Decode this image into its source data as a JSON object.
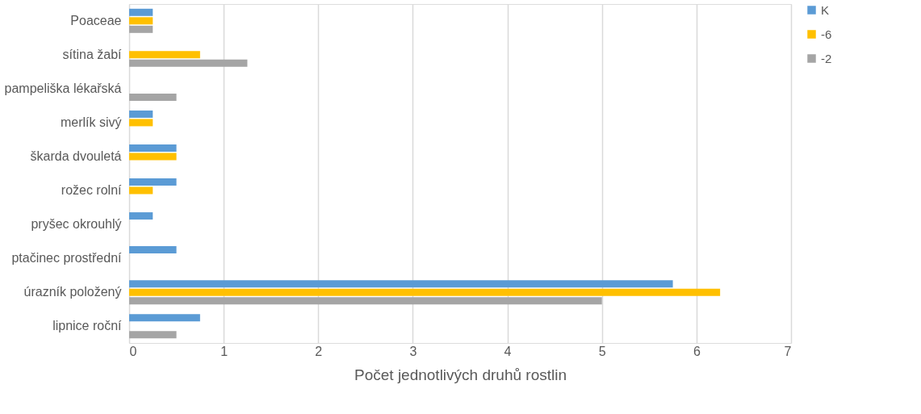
{
  "chart_data": {
    "type": "bar",
    "orientation": "horizontal",
    "xlabel": "Počet jednotlivých druhů rostlin",
    "categories": [
      "Poaceae",
      "sítina žabí",
      "pampeliška lékařská",
      "merlík sivý",
      "škarda dvouletá",
      "rožec rolní",
      "pryšec okrouhlý",
      "ptačinec prostřední",
      "úrazník položený",
      "lipnice roční"
    ],
    "series": [
      {
        "name": "K",
        "color": "#5b9bd5",
        "values": [
          0.25,
          null,
          null,
          0.25,
          0.5,
          0.5,
          0.25,
          0.5,
          5.75,
          0.75
        ]
      },
      {
        "name": "-6",
        "color": "#ffc000",
        "values": [
          0.25,
          0.75,
          null,
          0.25,
          0.5,
          0.25,
          null,
          null,
          6.25,
          null
        ]
      },
      {
        "name": "-2",
        "color": "#a5a5a5",
        "values": [
          0.25,
          1.25,
          0.5,
          null,
          null,
          null,
          null,
          null,
          5.0,
          0.5
        ]
      }
    ],
    "xlim": [
      0,
      7
    ],
    "xticks": [
      0,
      1,
      2,
      3,
      4,
      5,
      6,
      7
    ],
    "grid": "x",
    "legend": "right"
  }
}
